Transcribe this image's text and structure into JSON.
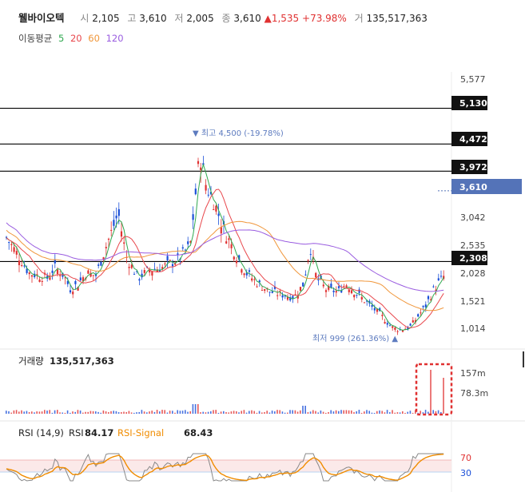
{
  "header": {
    "name": "웰바이오텍",
    "open_label": "시",
    "open": "2,105",
    "high_label": "고",
    "high": "3,610",
    "low_label": "저",
    "low": "2,005",
    "close_label": "종",
    "close": "3,610",
    "change_arrow": "▲",
    "change": "1,535",
    "change_pct": "+73.98%",
    "volume_label": "거",
    "volume": "135,517,363"
  },
  "ma_legend": {
    "label": "이동평균",
    "items": [
      {
        "period": "5",
        "color": "#2fa84f"
      },
      {
        "period": "20",
        "color": "#e8474c"
      },
      {
        "period": "60",
        "color": "#f0963a"
      },
      {
        "period": "120",
        "color": "#9a5de0"
      }
    ]
  },
  "colors": {
    "up": "#e03131",
    "down": "#1a4fd8",
    "hline": "#000000",
    "current_tag": "#5473b8",
    "rsi": "#888888",
    "rsi_signal": "#f08c00",
    "highlight_box": "#e03131"
  },
  "chart_data": {
    "type": "candlestick",
    "y_ticks": [
      "5,577",
      "3,042",
      "2,535",
      "2,028",
      "1,521",
      "1,014"
    ],
    "horizontal_lines": [
      {
        "value": 5130,
        "label": "5,130"
      },
      {
        "value": 4472,
        "label": "4,472"
      },
      {
        "value": 3972,
        "label": "3,972"
      },
      {
        "value": 2308,
        "label": "2,308"
      }
    ],
    "current_price": {
      "value": 3610,
      "label": "3,610"
    },
    "annotations": {
      "high": "▼ 최고 4,500 (-19.78%)",
      "low": "최저 999 (261.36%) ▲"
    },
    "y_range": [
      800,
      5800
    ],
    "volume": {
      "label": "거래량",
      "value": "135,517,363",
      "ticks": [
        "157m",
        "78.3m"
      ],
      "highlighted": true
    },
    "rsi": {
      "label": "RSI (14,9)",
      "rsi_label": "RSI",
      "rsi_value": "84.17",
      "signal_label": "RSI-Signal",
      "signal_value": "68.43",
      "levels": [
        "70",
        "30"
      ]
    }
  }
}
